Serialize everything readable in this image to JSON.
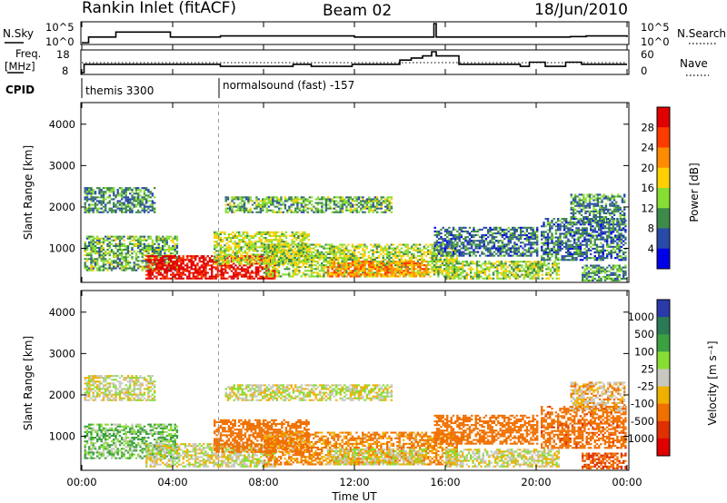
{
  "header": {
    "title": "Rankin Inlet (fitACF)",
    "beam": "Beam 02",
    "date": "18/Jun/2010"
  },
  "panels": {
    "nsky": {
      "left_label": "N.Sky",
      "left_ticks": [
        "10^5",
        "10^0"
      ],
      "right_label": "N.Search",
      "right_ticks": [
        "10^5",
        "10^0"
      ]
    },
    "freq": {
      "left_label_line1": "Freq.",
      "left_label_line2": "[MHz]",
      "left_ticks": [
        "18",
        "8"
      ],
      "right_label": "Nave",
      "right_ticks": [
        "60",
        "0"
      ]
    },
    "cpid": {
      "label": "CPID",
      "programs": [
        {
          "name": "themis 3300",
          "start_hour": 0
        },
        {
          "name": "normalsound (fast) -157",
          "start_hour": 6.05
        }
      ]
    }
  },
  "colorbars": {
    "power": {
      "label": "Power [dB]",
      "ticks": [
        "28",
        "24",
        "20",
        "16",
        "12",
        "8",
        "4"
      ],
      "colors": [
        "#e00000",
        "#ff3c00",
        "#ff8c00",
        "#ffd000",
        "#88dd33",
        "#3e8a4a",
        "#2a4aa8",
        "#0000e8"
      ]
    },
    "velocity": {
      "label": "Velocity [m s⁻¹]",
      "ticks": [
        "1000",
        "500",
        "100",
        "25",
        "-25",
        "-100",
        "-500",
        "-1000"
      ],
      "colors": [
        "#2a3aa8",
        "#2a7a55",
        "#3aa040",
        "#88dd33",
        "#c8c8c0",
        "#f0b000",
        "#f07000",
        "#e03000",
        "#e00000"
      ]
    }
  },
  "chart_data": [
    {
      "type": "line",
      "title": "N.Sky / N.Search",
      "xlim": [
        0,
        24
      ],
      "series": [
        {
          "name": "N.Sky",
          "x": [
            0,
            0.3,
            1.4,
            1.5,
            3.9,
            4.0,
            6.0,
            6.1,
            12.0,
            15.4,
            15.5,
            15.6,
            18.0,
            21.5,
            22.2,
            24.0
          ],
          "y": [
            1,
            30,
            30,
            600,
            30,
            30,
            30,
            60,
            30,
            30,
            100000,
            30,
            30,
            40,
            60,
            30
          ]
        }
      ]
    },
    {
      "type": "line",
      "title": "Freq. / Nave",
      "xlim": [
        0,
        24
      ],
      "series": [
        {
          "name": "Freq.",
          "x": [
            0,
            0.1,
            6.0,
            6.1,
            9.0,
            9.3,
            10.1,
            11.9,
            14.0,
            14.5,
            15.0,
            15.4,
            15.6,
            16.6,
            18.8,
            19.3,
            19.7,
            20.4,
            21.3,
            22.0,
            24.0
          ],
          "y": [
            8,
            12,
            12,
            11,
            11,
            12,
            11,
            12,
            14,
            15,
            16,
            18,
            16,
            12,
            12,
            11,
            13,
            11,
            13,
            12,
            12
          ]
        }
      ]
    },
    {
      "type": "heatmap",
      "title": "Power",
      "xlabel": "Time UT",
      "ylabel": "Slant Range [km]",
      "xlim": [
        0,
        24
      ],
      "ylim": [
        200,
        4500
      ],
      "x_ticks": [
        "00:00",
        "04:00",
        "08:00",
        "12:00",
        "16:00",
        "20:00",
        "00:00"
      ],
      "y_ticks": [
        "1000",
        "2000",
        "3000",
        "4000"
      ],
      "regions": [
        {
          "t0": 0.1,
          "t1": 3.2,
          "r0": 1850,
          "r1": 2450,
          "value": 9
        },
        {
          "t0": 0.1,
          "t1": 4.2,
          "r0": 450,
          "r1": 1300,
          "value": 11
        },
        {
          "t0": 2.8,
          "t1": 6.2,
          "r0": 250,
          "r1": 800,
          "value": 28
        },
        {
          "t0": 6.1,
          "t1": 8.5,
          "r0": 250,
          "r1": 800,
          "value": 28
        },
        {
          "t0": 6.3,
          "t1": 13.6,
          "r0": 1850,
          "r1": 2250,
          "value": 11
        },
        {
          "t0": 5.8,
          "t1": 10.0,
          "r0": 600,
          "r1": 1400,
          "value": 14
        },
        {
          "t0": 8.0,
          "t1": 16.5,
          "r0": 300,
          "r1": 1100,
          "value": 13
        },
        {
          "t0": 10.8,
          "t1": 15.2,
          "r0": 300,
          "r1": 700,
          "value": 20
        },
        {
          "t0": 16.0,
          "t1": 21.0,
          "r0": 250,
          "r1": 700,
          "value": 13
        },
        {
          "t0": 15.5,
          "t1": 20.0,
          "r0": 800,
          "r1": 1500,
          "value": 8
        },
        {
          "t0": 20.2,
          "t1": 23.9,
          "r0": 700,
          "r1": 1700,
          "value": 8
        },
        {
          "t0": 21.5,
          "t1": 23.9,
          "r0": 1600,
          "r1": 2300,
          "value": 9
        },
        {
          "t0": 22.0,
          "t1": 23.9,
          "r0": 200,
          "r1": 600,
          "value": 10
        }
      ]
    },
    {
      "type": "heatmap",
      "title": "Velocity",
      "xlabel": "Time UT",
      "ylabel": "Slant Range [km]",
      "xlim": [
        0,
        24
      ],
      "ylim": [
        200,
        4500
      ],
      "x_ticks": [
        "00:00",
        "04:00",
        "08:00",
        "12:00",
        "16:00",
        "20:00",
        "00:00"
      ],
      "y_ticks": [
        "1000",
        "2000",
        "3000",
        "4000"
      ],
      "regions": [
        {
          "t0": 0.1,
          "t1": 3.2,
          "r0": 1850,
          "r1": 2450,
          "value": 0
        },
        {
          "t0": 0.1,
          "t1": 4.2,
          "r0": 450,
          "r1": 1300,
          "value": 60
        },
        {
          "t0": 2.8,
          "t1": 8.5,
          "r0": 250,
          "r1": 800,
          "value": 0
        },
        {
          "t0": 6.3,
          "t1": 13.6,
          "r0": 1850,
          "r1": 2250,
          "value": 0
        },
        {
          "t0": 5.8,
          "t1": 10.0,
          "r0": 600,
          "r1": 1400,
          "value": -150
        },
        {
          "t0": 8.0,
          "t1": 16.5,
          "r0": 300,
          "r1": 1100,
          "value": -80
        },
        {
          "t0": 10.8,
          "t1": 15.2,
          "r0": 300,
          "r1": 700,
          "value": 0
        },
        {
          "t0": 16.0,
          "t1": 21.0,
          "r0": 250,
          "r1": 700,
          "value": 0
        },
        {
          "t0": 15.5,
          "t1": 20.0,
          "r0": 800,
          "r1": 1500,
          "value": -200
        },
        {
          "t0": 20.2,
          "t1": 23.9,
          "r0": 700,
          "r1": 1700,
          "value": -250
        },
        {
          "t0": 21.5,
          "t1": 23.9,
          "r0": 1600,
          "r1": 2300,
          "value": -40
        },
        {
          "t0": 22.0,
          "t1": 23.9,
          "r0": 200,
          "r1": 600,
          "value": -300
        }
      ]
    }
  ]
}
